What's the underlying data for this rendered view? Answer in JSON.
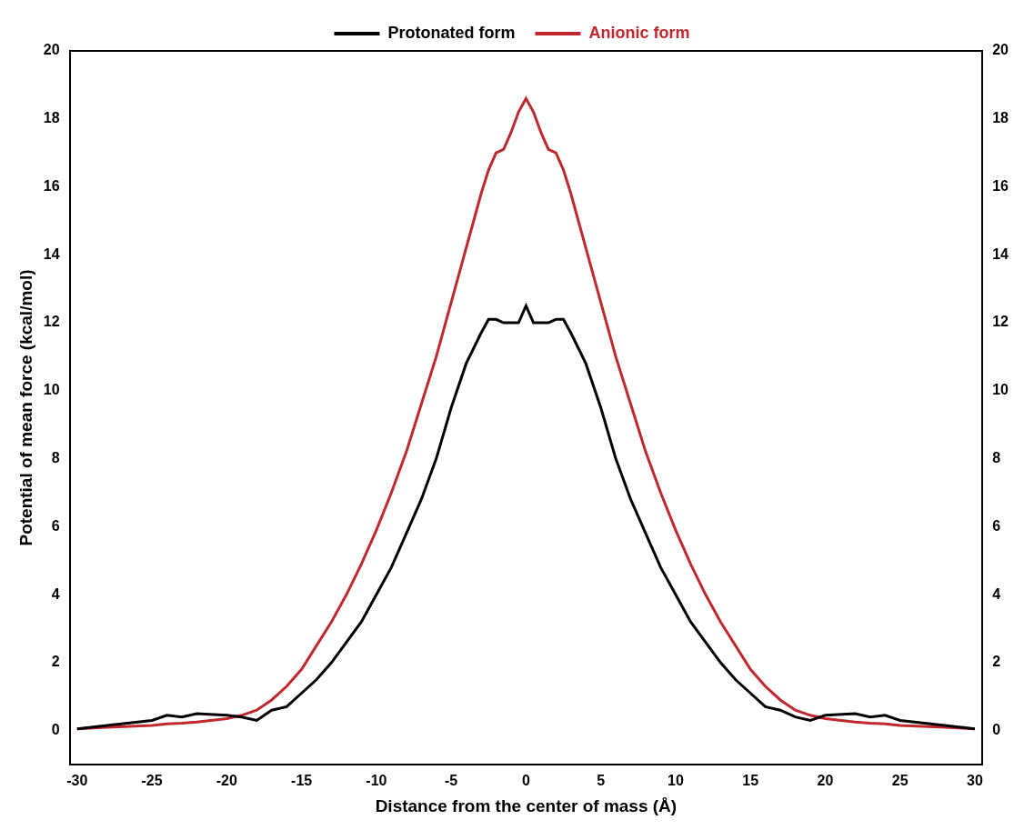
{
  "chart_data": {
    "type": "line",
    "x_label": "Distance from the center of mass (Å)",
    "y_label": "Potential of mean force (kcal/mol)",
    "x": [
      -30,
      -28,
      -25,
      -24,
      -23,
      -22,
      -20,
      -19,
      -18,
      -17,
      -16,
      -15,
      -14,
      -13,
      -12,
      -11,
      -10,
      -9,
      -8,
      -7,
      -6,
      -5,
      -4,
      -3,
      -2.5,
      -2,
      -1.5,
      -1,
      -0.5,
      0,
      0.5,
      1,
      1.5,
      2,
      2.5,
      3,
      4,
      5,
      6,
      7,
      8,
      9,
      10,
      11,
      12,
      13,
      14,
      15,
      16,
      17,
      18,
      19,
      20,
      22,
      23,
      24,
      25,
      28,
      30
    ],
    "series": [
      {
        "name": "Protonated form",
        "color": "#000000",
        "values": [
          0.05,
          0.15,
          0.3,
          0.45,
          0.4,
          0.5,
          0.45,
          0.4,
          0.3,
          0.6,
          0.7,
          1.1,
          1.5,
          2.0,
          2.6,
          3.2,
          4.0,
          4.8,
          5.8,
          6.8,
          8.0,
          9.5,
          10.8,
          11.7,
          12.1,
          12.1,
          12.0,
          12.0,
          12.0,
          12.5,
          12.0,
          12.0,
          12.0,
          12.1,
          12.1,
          11.7,
          10.8,
          9.5,
          8.0,
          6.8,
          5.8,
          4.8,
          4.0,
          3.2,
          2.6,
          2.0,
          1.5,
          1.1,
          0.7,
          0.6,
          0.4,
          0.3,
          0.45,
          0.5,
          0.4,
          0.45,
          0.3,
          0.15,
          0.05
        ]
      },
      {
        "name": "Anionic form",
        "color": "#c0282d",
        "values": [
          0.05,
          0.1,
          0.15,
          0.2,
          0.22,
          0.25,
          0.35,
          0.45,
          0.6,
          0.9,
          1.3,
          1.8,
          2.5,
          3.2,
          4.0,
          4.9,
          5.9,
          7.0,
          8.2,
          9.6,
          11.0,
          12.6,
          14.2,
          15.8,
          16.5,
          17.0,
          17.1,
          17.6,
          18.2,
          18.6,
          18.2,
          17.6,
          17.1,
          17.0,
          16.5,
          15.8,
          14.2,
          12.6,
          11.0,
          9.6,
          8.2,
          7.0,
          5.9,
          4.9,
          4.0,
          3.2,
          2.5,
          1.8,
          1.3,
          0.9,
          0.6,
          0.45,
          0.35,
          0.25,
          0.22,
          0.2,
          0.15,
          0.1,
          0.05
        ]
      }
    ],
    "xlim": [
      -30.5,
      30.5
    ],
    "xticks": [
      -30,
      -25,
      -20,
      -15,
      -10,
      -5,
      0,
      5,
      10,
      15,
      20,
      25,
      30
    ],
    "ylim": [
      -1,
      20
    ],
    "yticks": [
      0,
      2,
      4,
      6,
      8,
      10,
      12,
      14,
      16,
      18,
      20
    ],
    "y2lim": [
      -1,
      20
    ],
    "y2ticks": [
      0,
      2,
      4,
      6,
      8,
      10,
      12,
      14,
      16,
      18,
      20
    ],
    "legend": "top",
    "grid": false
  }
}
